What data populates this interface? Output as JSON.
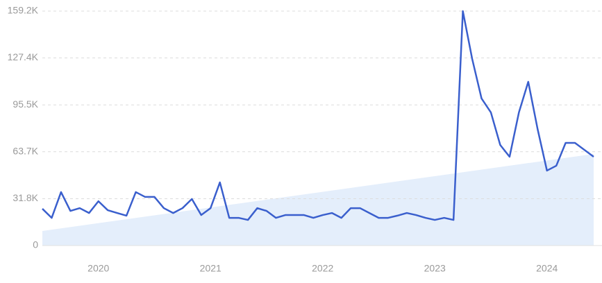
{
  "chart_data": {
    "type": "line",
    "categories": [
      null,
      null,
      null,
      null,
      null,
      null,
      "2020",
      null,
      null,
      null,
      null,
      null,
      null,
      null,
      null,
      null,
      null,
      null,
      "2021",
      null,
      null,
      null,
      null,
      null,
      null,
      null,
      null,
      null,
      null,
      null,
      "2022",
      null,
      null,
      null,
      null,
      null,
      null,
      null,
      null,
      null,
      null,
      null,
      "2023",
      null,
      null,
      null,
      null,
      null,
      null,
      null,
      null,
      null,
      null,
      null,
      "2024",
      null,
      null,
      null,
      null,
      null
    ],
    "series": [
      {
        "color": "#3a5fcd",
        "values": [
          25000,
          18800,
          36300,
          23500,
          25400,
          22100,
          30100,
          24000,
          22100,
          20300,
          36300,
          33000,
          33000,
          25400,
          22100,
          25400,
          31600,
          20700,
          25400,
          42900,
          18800,
          18800,
          17400,
          25400,
          23500,
          18800,
          20700,
          20700,
          20700,
          18800,
          20700,
          22100,
          18800,
          25400,
          25400,
          22100,
          18800,
          18800,
          20300,
          22100,
          20700,
          18800,
          17400,
          18800,
          17400,
          159200,
          126700,
          99900,
          90400,
          68300,
          60300,
          90400,
          111200,
          79100,
          50900,
          54200,
          69700,
          69700,
          65000,
          60300
        ]
      }
    ],
    "trend": {
      "color": "#e4eefb",
      "start": 9900,
      "end": 62200
    },
    "ylim": [
      0,
      159200
    ],
    "yticks": [
      0,
      {
        "value": 31800,
        "label": "31.8K"
      },
      {
        "value": 63700,
        "label": "63.7K"
      },
      {
        "value": 95500,
        "label": "95.5K"
      },
      {
        "value": 127400,
        "label": "127.4K"
      },
      {
        "value": 159200,
        "label": "159.2K"
      }
    ],
    "grid": true
  }
}
